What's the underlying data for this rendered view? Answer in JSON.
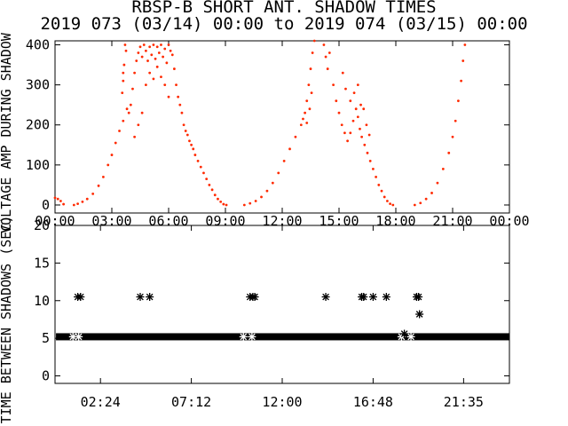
{
  "title": {
    "line1": "RBSP-B SHORT ANT. SHADOW TIMES",
    "line2": "2019 073 (03/14) 00:00 to 2019 074 (03/15) 00:00"
  },
  "colors": {
    "amp_points": "#ff2a00",
    "axes": "#000000",
    "interval_points": "#000000"
  },
  "chart_data": [
    {
      "type": "scatter",
      "ylabel": "VOLTAGE AMP DURING SHADOW",
      "xlim_hours": [
        0,
        24
      ],
      "ylim": [
        -20,
        410
      ],
      "x_ticklabels": [
        "00:00",
        "03:00",
        "06:00",
        "09:00",
        "12:00",
        "15:00",
        "18:00",
        "21:00",
        "00:00"
      ],
      "y_ticklabels": [
        "0",
        "100",
        "200",
        "300",
        "400"
      ],
      "marker": "dot",
      "series": [
        {
          "color": "#ff2a00",
          "points": [
            [
              0.0,
              18
            ],
            [
              0.15,
              15
            ],
            [
              0.3,
              10
            ],
            [
              0.45,
              2
            ],
            [
              1.0,
              0
            ],
            [
              1.2,
              3
            ],
            [
              1.45,
              8
            ],
            [
              1.7,
              15
            ],
            [
              2.0,
              28
            ],
            [
              2.3,
              48
            ],
            [
              2.55,
              70
            ],
            [
              2.8,
              100
            ],
            [
              3.0,
              125
            ],
            [
              3.2,
              155
            ],
            [
              3.4,
              185
            ],
            [
              3.6,
              210
            ],
            [
              3.8,
              240
            ],
            [
              3.55,
              280
            ],
            [
              3.6,
              310
            ],
            [
              3.65,
              350
            ],
            [
              3.7,
              400
            ],
            [
              3.75,
              385
            ],
            [
              3.6,
              330
            ],
            [
              3.9,
              230
            ],
            [
              4.0,
              250
            ],
            [
              4.1,
              290
            ],
            [
              4.2,
              330
            ],
            [
              4.3,
              360
            ],
            [
              4.4,
              380
            ],
            [
              4.5,
              395
            ],
            [
              4.6,
              370
            ],
            [
              4.7,
              400
            ],
            [
              4.8,
              385
            ],
            [
              4.9,
              360
            ],
            [
              5.0,
              395
            ],
            [
              5.1,
              375
            ],
            [
              5.2,
              400
            ],
            [
              5.3,
              365
            ],
            [
              5.4,
              395
            ],
            [
              5.5,
              380
            ],
            [
              5.6,
              400
            ],
            [
              5.7,
              370
            ],
            [
              5.8,
              390
            ],
            [
              5.9,
              355
            ],
            [
              6.0,
              400
            ],
            [
              6.1,
              385
            ],
            [
              6.2,
              375
            ],
            [
              6.3,
              340
            ],
            [
              6.4,
              300
            ],
            [
              6.5,
              270
            ],
            [
              6.6,
              250
            ],
            [
              6.7,
              230
            ],
            [
              6.8,
              200
            ],
            [
              6.9,
              185
            ],
            [
              7.0,
              175
            ],
            [
              7.1,
              160
            ],
            [
              7.2,
              150
            ],
            [
              7.3,
              140
            ],
            [
              7.4,
              125
            ],
            [
              7.55,
              110
            ],
            [
              7.7,
              95
            ],
            [
              7.85,
              80
            ],
            [
              8.0,
              65
            ],
            [
              8.15,
              50
            ],
            [
              8.3,
              38
            ],
            [
              8.45,
              25
            ],
            [
              8.6,
              15
            ],
            [
              8.75,
              8
            ],
            [
              8.9,
              2
            ],
            [
              9.05,
              0
            ],
            [
              4.2,
              170
            ],
            [
              4.4,
              200
            ],
            [
              4.6,
              230
            ],
            [
              4.8,
              300
            ],
            [
              5.0,
              330
            ],
            [
              5.2,
              315
            ],
            [
              5.4,
              345
            ],
            [
              5.6,
              320
            ],
            [
              5.8,
              300
            ],
            [
              6.0,
              270
            ],
            [
              10.0,
              0
            ],
            [
              10.3,
              4
            ],
            [
              10.6,
              10
            ],
            [
              10.9,
              20
            ],
            [
              11.2,
              35
            ],
            [
              11.5,
              55
            ],
            [
              11.8,
              80
            ],
            [
              12.1,
              110
            ],
            [
              12.4,
              140
            ],
            [
              12.7,
              170
            ],
            [
              13.0,
              200
            ],
            [
              13.2,
              230
            ],
            [
              13.3,
              260
            ],
            [
              13.4,
              300
            ],
            [
              13.5,
              340
            ],
            [
              13.6,
              380
            ],
            [
              13.7,
              410
            ],
            [
              13.1,
              215
            ],
            [
              13.3,
              205
            ],
            [
              13.45,
              240
            ],
            [
              13.55,
              280
            ],
            [
              14.2,
              400
            ],
            [
              14.3,
              370
            ],
            [
              14.4,
              340
            ],
            [
              14.5,
              380
            ],
            [
              14.7,
              300
            ],
            [
              14.85,
              260
            ],
            [
              15.0,
              230
            ],
            [
              15.15,
              200
            ],
            [
              15.3,
              180
            ],
            [
              15.45,
              160
            ],
            [
              15.6,
              180
            ],
            [
              15.75,
              210
            ],
            [
              15.9,
              240
            ],
            [
              16.0,
              220
            ],
            [
              16.1,
              190
            ],
            [
              16.2,
              170
            ],
            [
              16.35,
              150
            ],
            [
              16.5,
              130
            ],
            [
              16.65,
              110
            ],
            [
              16.8,
              90
            ],
            [
              16.95,
              70
            ],
            [
              17.1,
              50
            ],
            [
              17.25,
              35
            ],
            [
              17.4,
              20
            ],
            [
              17.55,
              10
            ],
            [
              17.7,
              3
            ],
            [
              17.85,
              0
            ],
            [
              15.2,
              330
            ],
            [
              15.35,
              290
            ],
            [
              15.6,
              260
            ],
            [
              15.8,
              280
            ],
            [
              16.0,
              300
            ],
            [
              16.15,
              250
            ],
            [
              16.3,
              240
            ],
            [
              16.45,
              200
            ],
            [
              16.6,
              175
            ],
            [
              19.0,
              0
            ],
            [
              19.3,
              5
            ],
            [
              19.6,
              15
            ],
            [
              19.9,
              30
            ],
            [
              20.2,
              55
            ],
            [
              20.5,
              90
            ],
            [
              20.8,
              130
            ],
            [
              21.0,
              170
            ],
            [
              21.15,
              210
            ],
            [
              21.3,
              260
            ],
            [
              21.45,
              310
            ],
            [
              21.55,
              360
            ],
            [
              21.65,
              400
            ]
          ]
        }
      ]
    },
    {
      "type": "scatter",
      "ylabel": "TIME BETWEEN SHADOWS (SEC)",
      "xlim_hours": [
        0,
        24
      ],
      "ylim": [
        -1,
        20
      ],
      "x_ticklabels": [
        "02:24",
        "07:12",
        "12:00",
        "16:48",
        "21:35"
      ],
      "y_ticklabels": [
        "0",
        "5",
        "10",
        "15",
        "20"
      ],
      "marker": "asterisk",
      "series": [
        {
          "color": "#000000",
          "baseline": 5.2,
          "points": [
            [
              1.2,
              10.5
            ],
            [
              1.35,
              10.5
            ],
            [
              4.5,
              10.5
            ],
            [
              5.0,
              10.5
            ],
            [
              10.3,
              10.5
            ],
            [
              10.45,
              10.5
            ],
            [
              10.55,
              10.5
            ],
            [
              14.3,
              10.5
            ],
            [
              16.2,
              10.5
            ],
            [
              16.3,
              10.5
            ],
            [
              16.8,
              10.5
            ],
            [
              17.5,
              10.5
            ],
            [
              19.1,
              10.5
            ],
            [
              19.2,
              10.5
            ],
            [
              19.25,
              8.2
            ],
            [
              0.95,
              5.2
            ],
            [
              1.25,
              5.2
            ],
            [
              9.95,
              5.2
            ],
            [
              10.4,
              5.2
            ],
            [
              18.3,
              5.2
            ],
            [
              18.45,
              5.6
            ],
            [
              18.8,
              5.2
            ]
          ]
        }
      ]
    }
  ]
}
